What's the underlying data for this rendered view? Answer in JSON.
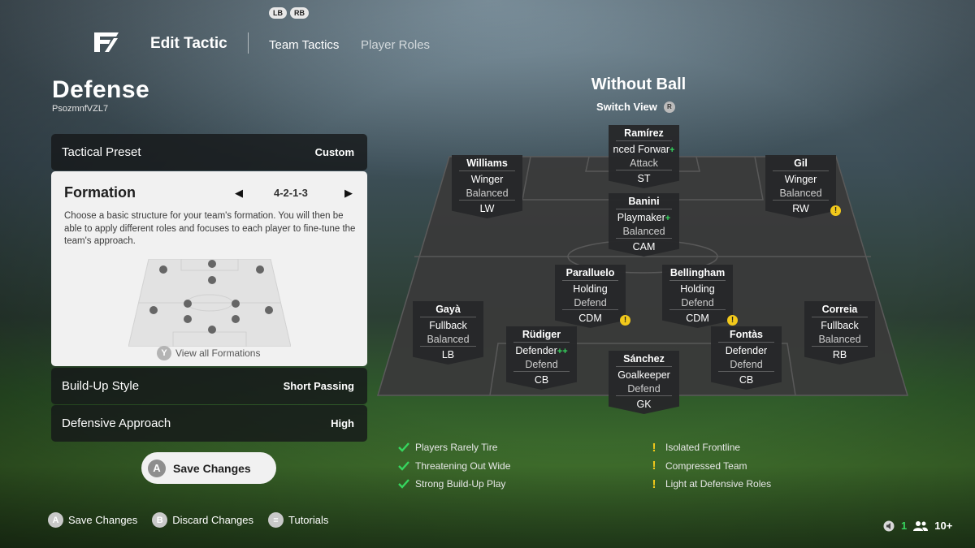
{
  "header": {
    "bumpers": [
      "LB",
      "RB"
    ],
    "title": "Edit Tactic",
    "tabs": [
      "Team Tactics",
      "Player Roles"
    ]
  },
  "left_panel": {
    "title": "Defense",
    "code": "PsozmnfVZL7",
    "tactical_preset": {
      "label": "Tactical Preset",
      "value": "Custom"
    },
    "formation": {
      "title": "Formation",
      "value": "4-2-1-3",
      "description": "Choose a basic structure for your team's formation. You will then be able to apply different roles and focuses to each player to fine-tune the team's approach.",
      "view_all_button": "Y",
      "view_all_label": "View all Formations"
    },
    "build_up": {
      "label": "Build-Up Style",
      "value": "Short Passing"
    },
    "defensive_approach": {
      "label": "Defensive Approach",
      "value": "High"
    },
    "save_button": {
      "glyph": "A",
      "label": "Save Changes"
    }
  },
  "center": {
    "title": "Without Ball",
    "switch_view": "Switch View",
    "switch_view_button": "R"
  },
  "players": {
    "st": {
      "name": "Ramírez",
      "role": "nced Forwar",
      "focus": "Attack",
      "position": "ST",
      "plus": "+",
      "warning": ""
    },
    "lw": {
      "name": "Williams",
      "role": "Winger",
      "focus": "Balanced",
      "position": "LW",
      "plus": "",
      "warning": ""
    },
    "rw": {
      "name": "Gil",
      "role": "Winger",
      "focus": "Balanced",
      "position": "RW",
      "plus": "",
      "warning": "!"
    },
    "cam": {
      "name": "Banini",
      "role": "Playmaker",
      "focus": "Balanced",
      "position": "CAM",
      "plus": "+",
      "warning": ""
    },
    "cdm_l": {
      "name": "Paralluelo",
      "role": "Holding",
      "focus": "Defend",
      "position": "CDM",
      "plus": "",
      "warning": "!"
    },
    "cdm_r": {
      "name": "Bellingham",
      "role": "Holding",
      "focus": "Defend",
      "position": "CDM",
      "plus": "",
      "warning": "!"
    },
    "lb": {
      "name": "Gayà",
      "role": "Fullback",
      "focus": "Balanced",
      "position": "LB",
      "plus": "",
      "warning": ""
    },
    "rb": {
      "name": "Correia",
      "role": "Fullback",
      "focus": "Balanced",
      "position": "RB",
      "plus": "",
      "warning": ""
    },
    "cb_l": {
      "name": "Rüdiger",
      "role": "Defender",
      "focus": "Defend",
      "position": "CB",
      "plus": "++",
      "warning": ""
    },
    "cb_r": {
      "name": "Fontàs",
      "role": "Defender",
      "focus": "Defend",
      "position": "CB",
      "plus": "",
      "warning": ""
    },
    "gk": {
      "name": "Sánchez",
      "role": "Goalkeeper",
      "focus": "Defend",
      "position": "GK",
      "plus": "",
      "warning": ""
    }
  },
  "feedback": {
    "positives": [
      "Players Rarely Tire",
      "Threatening Out Wide",
      "Strong Build-Up Play"
    ],
    "warnings": [
      "Isolated Frontline",
      "Compressed Team",
      "Light at Defensive Roles"
    ]
  },
  "footer": {
    "save": {
      "glyph": "A",
      "label": "Save Changes"
    },
    "discard": {
      "glyph": "B",
      "label": "Discard Changes"
    },
    "tutorials": {
      "glyph": "≡",
      "label": "Tutorials"
    }
  },
  "status": {
    "count": "1",
    "players": "10+"
  },
  "colors": {
    "positive": "#36d65e",
    "warning": "#f2c91b",
    "panel": "#16181a",
    "card": "#f1f1f1"
  }
}
